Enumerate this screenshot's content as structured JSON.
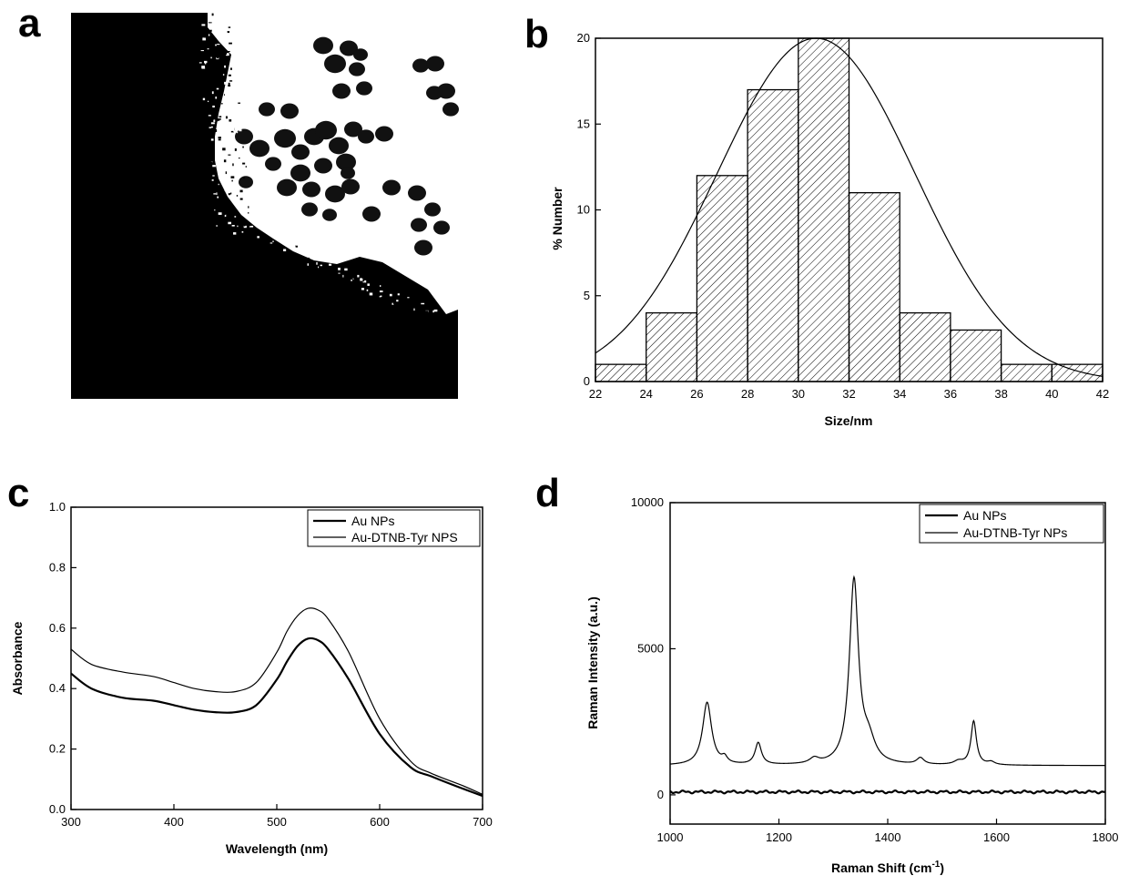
{
  "panels": {
    "a": {
      "letter": "a"
    },
    "b": {
      "letter": "b"
    },
    "c": {
      "letter": "c"
    },
    "d": {
      "letter": "d"
    }
  },
  "tem_image": {
    "particles": [
      [
        355,
        50,
        11
      ],
      [
        383,
        53,
        10
      ],
      [
        368,
        70,
        12
      ],
      [
        392,
        76,
        9
      ],
      [
        396,
        60,
        8
      ],
      [
        375,
        100,
        10
      ],
      [
        400,
        97,
        9
      ],
      [
        462,
        72,
        9
      ],
      [
        478,
        70,
        10
      ],
      [
        490,
        100,
        10
      ],
      [
        477,
        102,
        9
      ],
      [
        495,
        120,
        9
      ],
      [
        268,
        150,
        10
      ],
      [
        285,
        163,
        11
      ],
      [
        313,
        152,
        12
      ],
      [
        330,
        167,
        10
      ],
      [
        345,
        150,
        11
      ],
      [
        358,
        143,
        12
      ],
      [
        372,
        160,
        11
      ],
      [
        388,
        142,
        10
      ],
      [
        402,
        150,
        9
      ],
      [
        422,
        147,
        10
      ],
      [
        380,
        178,
        11
      ],
      [
        355,
        182,
        10
      ],
      [
        330,
        190,
        11
      ],
      [
        342,
        208,
        10
      ],
      [
        315,
        206,
        11
      ],
      [
        368,
        213,
        11
      ],
      [
        385,
        205,
        10
      ],
      [
        408,
        235,
        10
      ],
      [
        430,
        206,
        10
      ],
      [
        458,
        212,
        10
      ],
      [
        475,
        230,
        9
      ],
      [
        485,
        250,
        9
      ],
      [
        460,
        247,
        9
      ],
      [
        465,
        272,
        10
      ],
      [
        382,
        190,
        8
      ],
      [
        300,
        180,
        9
      ],
      [
        293,
        120,
        9
      ],
      [
        270,
        200,
        8
      ],
      [
        340,
        230,
        9
      ],
      [
        362,
        236,
        8
      ],
      [
        318,
        122,
        10
      ]
    ]
  },
  "chart_data": [
    {
      "id": "b",
      "type": "bar",
      "xlabel": "Size/nm",
      "ylabel": "% Number",
      "xlim": [
        22,
        42
      ],
      "ylim": [
        0,
        20
      ],
      "x_ticks": [
        22,
        24,
        26,
        28,
        30,
        32,
        34,
        36,
        38,
        40,
        42
      ],
      "y_ticks": [
        0,
        5,
        10,
        15,
        20
      ],
      "bins": [
        {
          "x0": 22,
          "x1": 24,
          "value": 1
        },
        {
          "x0": 24,
          "x1": 26,
          "value": 4
        },
        {
          "x0": 26,
          "x1": 28,
          "value": 12
        },
        {
          "x0": 28,
          "x1": 30,
          "value": 17
        },
        {
          "x0": 30,
          "x1": 32,
          "value": 20
        },
        {
          "x0": 32,
          "x1": 34,
          "value": 11
        },
        {
          "x0": 34,
          "x1": 36,
          "value": 4
        },
        {
          "x0": 36,
          "x1": 38,
          "value": 3
        },
        {
          "x0": 38,
          "x1": 40,
          "value": 1
        },
        {
          "x0": 40,
          "x1": 42,
          "value": 1
        }
      ],
      "fit": {
        "type": "gaussian",
        "mean": 30.7,
        "sigma": 3.9,
        "peak": 20
      }
    },
    {
      "id": "c",
      "type": "line",
      "xlabel": "Wavelength (nm)",
      "ylabel": "Absorbance",
      "xlim": [
        300,
        700
      ],
      "ylim": [
        0,
        1.0
      ],
      "x_ticks": [
        300,
        400,
        500,
        600,
        700
      ],
      "y_ticks": [
        0.0,
        0.2,
        0.4,
        0.6,
        0.8,
        1.0
      ],
      "legend_position": "top-right",
      "series": [
        {
          "name": "Au NPs",
          "stroke_width": 2.2,
          "x": [
            300,
            320,
            350,
            380,
            400,
            420,
            440,
            460,
            480,
            500,
            510,
            520,
            530,
            540,
            550,
            570,
            600,
            630,
            650,
            680,
            700
          ],
          "y": [
            0.45,
            0.4,
            0.37,
            0.36,
            0.345,
            0.33,
            0.322,
            0.322,
            0.345,
            0.43,
            0.49,
            0.54,
            0.565,
            0.56,
            0.53,
            0.43,
            0.25,
            0.14,
            0.11,
            0.07,
            0.045
          ]
        },
        {
          "name": "Au-DTNB-Tyr NPS",
          "stroke_width": 1.2,
          "x": [
            300,
            320,
            350,
            380,
            400,
            420,
            440,
            460,
            480,
            500,
            510,
            520,
            530,
            540,
            550,
            570,
            600,
            630,
            650,
            680,
            700
          ],
          "y": [
            0.53,
            0.48,
            0.455,
            0.44,
            0.42,
            0.4,
            0.39,
            0.39,
            0.42,
            0.52,
            0.59,
            0.64,
            0.665,
            0.66,
            0.63,
            0.52,
            0.3,
            0.16,
            0.12,
            0.08,
            0.05
          ]
        }
      ]
    },
    {
      "id": "d",
      "type": "line",
      "xlabel": "Raman Shift (cm",
      "xlabel_superscript": "-1",
      "xlabel_suffix": ")",
      "ylabel": "Raman Intensity (a.u.)",
      "xlim": [
        1000,
        1800
      ],
      "ylim": [
        -1000,
        10000
      ],
      "x_ticks": [
        1000,
        1200,
        1400,
        1600,
        1800
      ],
      "y_ticks": [
        0,
        5000,
        10000
      ],
      "legend_position": "top-right",
      "series": [
        {
          "name": "Au NPs",
          "stroke_width": 2.2,
          "baseline": 100,
          "peaks": []
        },
        {
          "name": "Au-DTNB-Tyr NPs",
          "stroke_width": 1.2,
          "baseline": 1000,
          "peaks": [
            {
              "center": 1068,
              "height": 2150,
              "width": 10
            },
            {
              "center": 1100,
              "height": 200,
              "width": 6
            },
            {
              "center": 1162,
              "height": 750,
              "width": 7
            },
            {
              "center": 1265,
              "height": 180,
              "width": 10
            },
            {
              "center": 1338,
              "height": 6300,
              "width": 10
            },
            {
              "center": 1365,
              "height": 700,
              "width": 14
            },
            {
              "center": 1460,
              "height": 220,
              "width": 8
            },
            {
              "center": 1530,
              "height": 120,
              "width": 10
            },
            {
              "center": 1558,
              "height": 1500,
              "width": 6
            },
            {
              "center": 1590,
              "height": 100,
              "width": 8
            }
          ]
        }
      ]
    }
  ]
}
